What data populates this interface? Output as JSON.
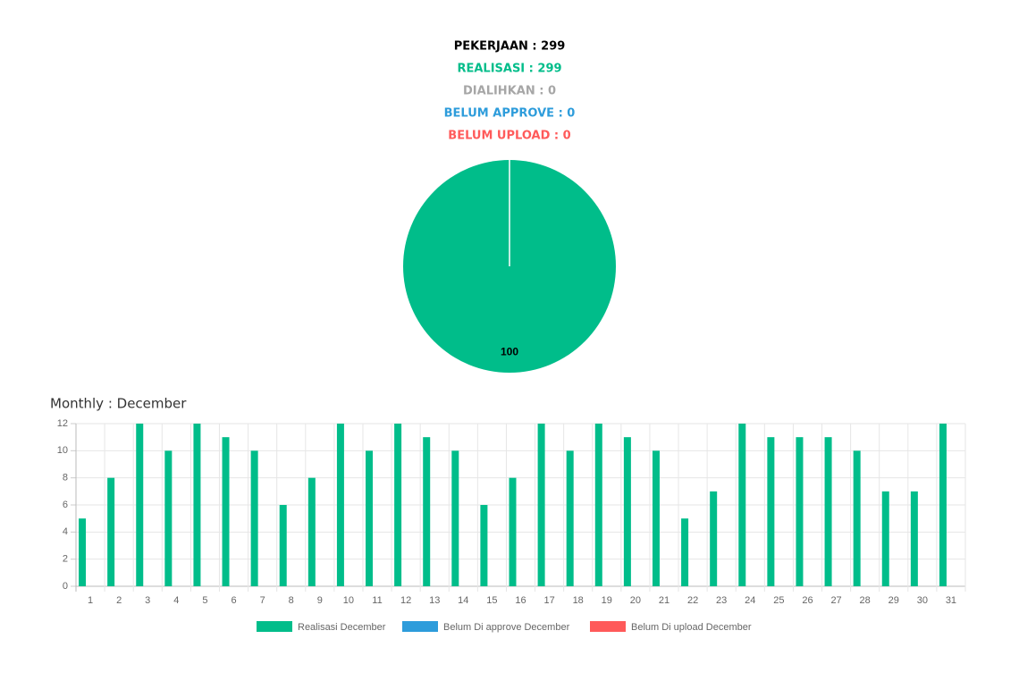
{
  "summary": [
    {
      "text": "PEKERJAAN : 299",
      "color": "#000000"
    },
    {
      "text": "REALISASI : 299",
      "color": "#00bd8a"
    },
    {
      "text": "DIALIHKAN : 0",
      "color": "#a6a6a6"
    },
    {
      "text": "BELUM APPROVE : 0",
      "color": "#2d9cdb"
    },
    {
      "text": "BELUM UPLOAD : 0",
      "color": "#ff5a5a"
    }
  ],
  "chart_data": [
    {
      "type": "pie",
      "values": [
        100
      ],
      "colors": [
        "#00bd8a"
      ]
    },
    {
      "type": "bar",
      "title": "Monthly : December",
      "categories": [
        "1",
        "2",
        "3",
        "4",
        "5",
        "6",
        "7",
        "8",
        "9",
        "10",
        "11",
        "12",
        "13",
        "14",
        "15",
        "16",
        "17",
        "18",
        "19",
        "20",
        "21",
        "22",
        "23",
        "24",
        "25",
        "26",
        "27",
        "28",
        "29",
        "30",
        "31"
      ],
      "series": [
        {
          "name": "Realisasi December",
          "color": "#00bd8a",
          "values": [
            5,
            8,
            12,
            10,
            12,
            11,
            10,
            6,
            8,
            12,
            10,
            12,
            11,
            10,
            6,
            8,
            12,
            10,
            12,
            11,
            10,
            5,
            7,
            12,
            11,
            11,
            11,
            10,
            7,
            7,
            12
          ]
        },
        {
          "name": "Belum Di approve December",
          "color": "#2d9cdb",
          "values": [
            0,
            0,
            0,
            0,
            0,
            0,
            0,
            0,
            0,
            0,
            0,
            0,
            0,
            0,
            0,
            0,
            0,
            0,
            0,
            0,
            0,
            0,
            0,
            0,
            0,
            0,
            0,
            0,
            0,
            0,
            0
          ]
        },
        {
          "name": "Belum Di upload December",
          "color": "#ff5a5a",
          "values": [
            0,
            0,
            0,
            0,
            0,
            0,
            0,
            0,
            0,
            0,
            0,
            0,
            0,
            0,
            0,
            0,
            0,
            0,
            0,
            0,
            0,
            0,
            0,
            0,
            0,
            0,
            0,
            0,
            0,
            0,
            0
          ]
        }
      ],
      "ylim": [
        0,
        12
      ],
      "yticks": [
        0,
        2,
        4,
        6,
        8,
        10,
        12
      ],
      "grid": true,
      "legend": "bottom"
    }
  ]
}
